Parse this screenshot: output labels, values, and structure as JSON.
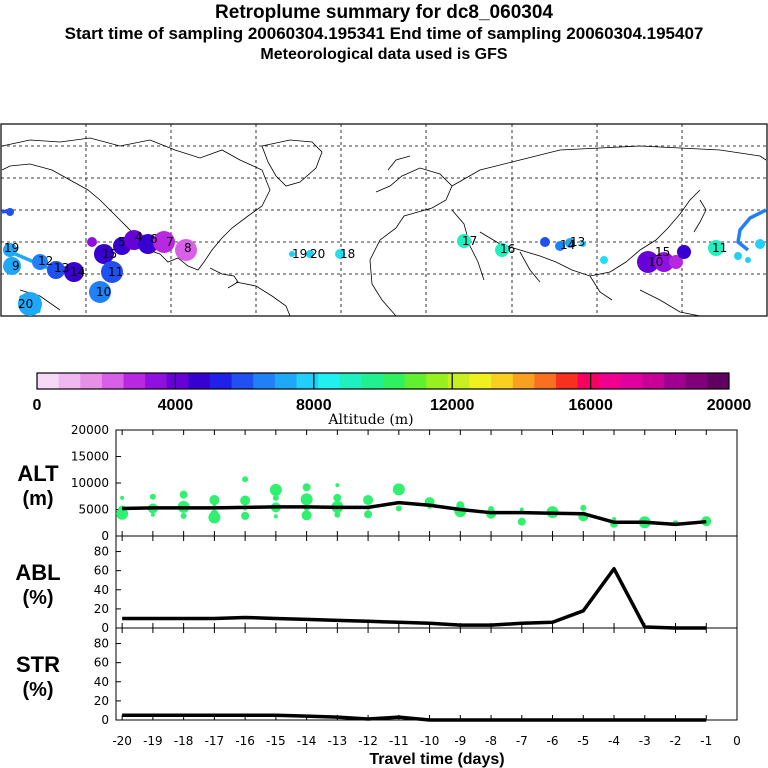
{
  "header": {
    "title": "Retroplume summary for dc8_060304",
    "sampling": "Start time of sampling 20060304.195341     End time of sampling 20060304.195407",
    "met": "Meteorological data used is GFS"
  },
  "colorbar": {
    "ticks": [
      "0",
      "4000",
      "8000",
      "12000",
      "16000",
      "20000"
    ],
    "label": "Altitude (m)",
    "colors": [
      "#f8d8f8",
      "#f0b8f0",
      "#e890e8",
      "#d860e8",
      "#b828e0",
      "#9010e0",
      "#6800d8",
      "#3800d0",
      "#2020e8",
      "#2050f0",
      "#2080f8",
      "#20a8f8",
      "#20d0f8",
      "#20f0f0",
      "#20f0c0",
      "#20f090",
      "#30f060",
      "#60f030",
      "#98f020",
      "#c8f020",
      "#f0f020",
      "#f8d020",
      "#f8a020",
      "#f87020",
      "#f83020",
      "#f80060",
      "#f00090",
      "#e000a0",
      "#c80098",
      "#a00090",
      "#800078",
      "#600060"
    ]
  },
  "map": {
    "labels": [
      "19",
      "20",
      "5",
      "4",
      "6",
      "7",
      "8",
      "9",
      "10",
      "11",
      "12",
      "13",
      "14",
      "15",
      "16",
      "17",
      "18",
      "19",
      "20",
      "10",
      "15",
      "14",
      "13",
      "11"
    ]
  },
  "chart_data": [
    {
      "type": "line",
      "panel": "ALT",
      "ylabel_top": "ALT",
      "ylabel_bottom": "(m)",
      "ylim": [
        0,
        20000
      ],
      "yticks": [
        0,
        5000,
        10000,
        15000,
        20000
      ],
      "x": [
        -20,
        -19,
        -18,
        -17,
        -16,
        -15,
        -14,
        -13,
        -12,
        -11,
        -10,
        -9,
        -8,
        -7,
        -6,
        -5,
        -4,
        -3,
        -2,
        -1
      ],
      "values": [
        5200,
        5300,
        5300,
        5300,
        5400,
        5500,
        5500,
        5400,
        5400,
        6300,
        5800,
        5000,
        4400,
        4400,
        4300,
        4200,
        2600,
        2600,
        2200,
        2700
      ],
      "scatter_color": "#30f070",
      "scatter": [
        [
          -20,
          7200
        ],
        [
          -20,
          5000
        ],
        [
          -20,
          4200
        ],
        [
          -19,
          7400
        ],
        [
          -19,
          5200
        ],
        [
          -19,
          4000
        ],
        [
          -18,
          7800
        ],
        [
          -18,
          5500
        ],
        [
          -18,
          3800
        ],
        [
          -17,
          6800
        ],
        [
          -17,
          6000
        ],
        [
          -17,
          4200
        ],
        [
          -17,
          3500
        ],
        [
          -16,
          10700
        ],
        [
          -16,
          6700
        ],
        [
          -16,
          5200
        ],
        [
          -16,
          3800
        ],
        [
          -15,
          8700
        ],
        [
          -15,
          7200
        ],
        [
          -15,
          5400
        ],
        [
          -15,
          3700
        ],
        [
          -14,
          9200
        ],
        [
          -14,
          6900
        ],
        [
          -14,
          5300
        ],
        [
          -14,
          3900
        ],
        [
          -13,
          9600
        ],
        [
          -13,
          7200
        ],
        [
          -13,
          5500
        ],
        [
          -13,
          4000
        ],
        [
          -12,
          6800
        ],
        [
          -12,
          5300
        ],
        [
          -12,
          4100
        ],
        [
          -11,
          8800
        ],
        [
          -11,
          5200
        ],
        [
          -10,
          6400
        ],
        [
          -10,
          5500
        ],
        [
          -9,
          5800
        ],
        [
          -9,
          4700
        ],
        [
          -8,
          5100
        ],
        [
          -8,
          4200
        ],
        [
          -7,
          5000
        ],
        [
          -7,
          2700
        ],
        [
          -6,
          4500
        ],
        [
          -5,
          5300
        ],
        [
          -5,
          3700
        ],
        [
          -4,
          3200
        ],
        [
          -4,
          2300
        ],
        [
          -3,
          2600
        ],
        [
          -2,
          2400
        ],
        [
          -1,
          2800
        ]
      ]
    },
    {
      "type": "line",
      "panel": "ABL",
      "ylabel_top": "ABL",
      "ylabel_bottom": "(%)",
      "ylim": [
        0,
        90
      ],
      "yticks": [
        0,
        20,
        40,
        60,
        80
      ],
      "x": [
        -20,
        -19,
        -18,
        -17,
        -16,
        -15,
        -14,
        -13,
        -12,
        -11,
        -10,
        -9,
        -8,
        -7,
        -6,
        -5,
        -4,
        -3,
        -2,
        -1
      ],
      "values": [
        10,
        10,
        10,
        10,
        11,
        10,
        9,
        8,
        7,
        6,
        5,
        3,
        3,
        5,
        6,
        18,
        62,
        1,
        0,
        0
      ]
    },
    {
      "type": "line",
      "panel": "STR",
      "ylabel_top": "STR",
      "ylabel_bottom": "(%)",
      "ylim": [
        0,
        90
      ],
      "yticks": [
        0,
        20,
        40,
        60,
        80
      ],
      "x": [
        -20,
        -19,
        -18,
        -17,
        -16,
        -15,
        -14,
        -13,
        -12,
        -11,
        -10,
        -9,
        -8,
        -7,
        -6,
        -5,
        -4,
        -3,
        -2,
        -1
      ],
      "values": [
        5,
        5,
        5,
        5,
        5,
        5,
        4,
        3,
        1,
        3,
        0,
        0,
        0,
        0,
        0,
        0,
        0,
        0,
        0,
        0
      ]
    }
  ],
  "xaxis": {
    "ticks": [
      "-20",
      "-19",
      "-18",
      "-17",
      "-16",
      "-15",
      "-14",
      "-13",
      "-12",
      "-11",
      "-10",
      "-9",
      "-8",
      "-7",
      "-6",
      "-5",
      "-4",
      "-3",
      "-2",
      "-1",
      "0"
    ],
    "label": "Travel time (days)"
  }
}
